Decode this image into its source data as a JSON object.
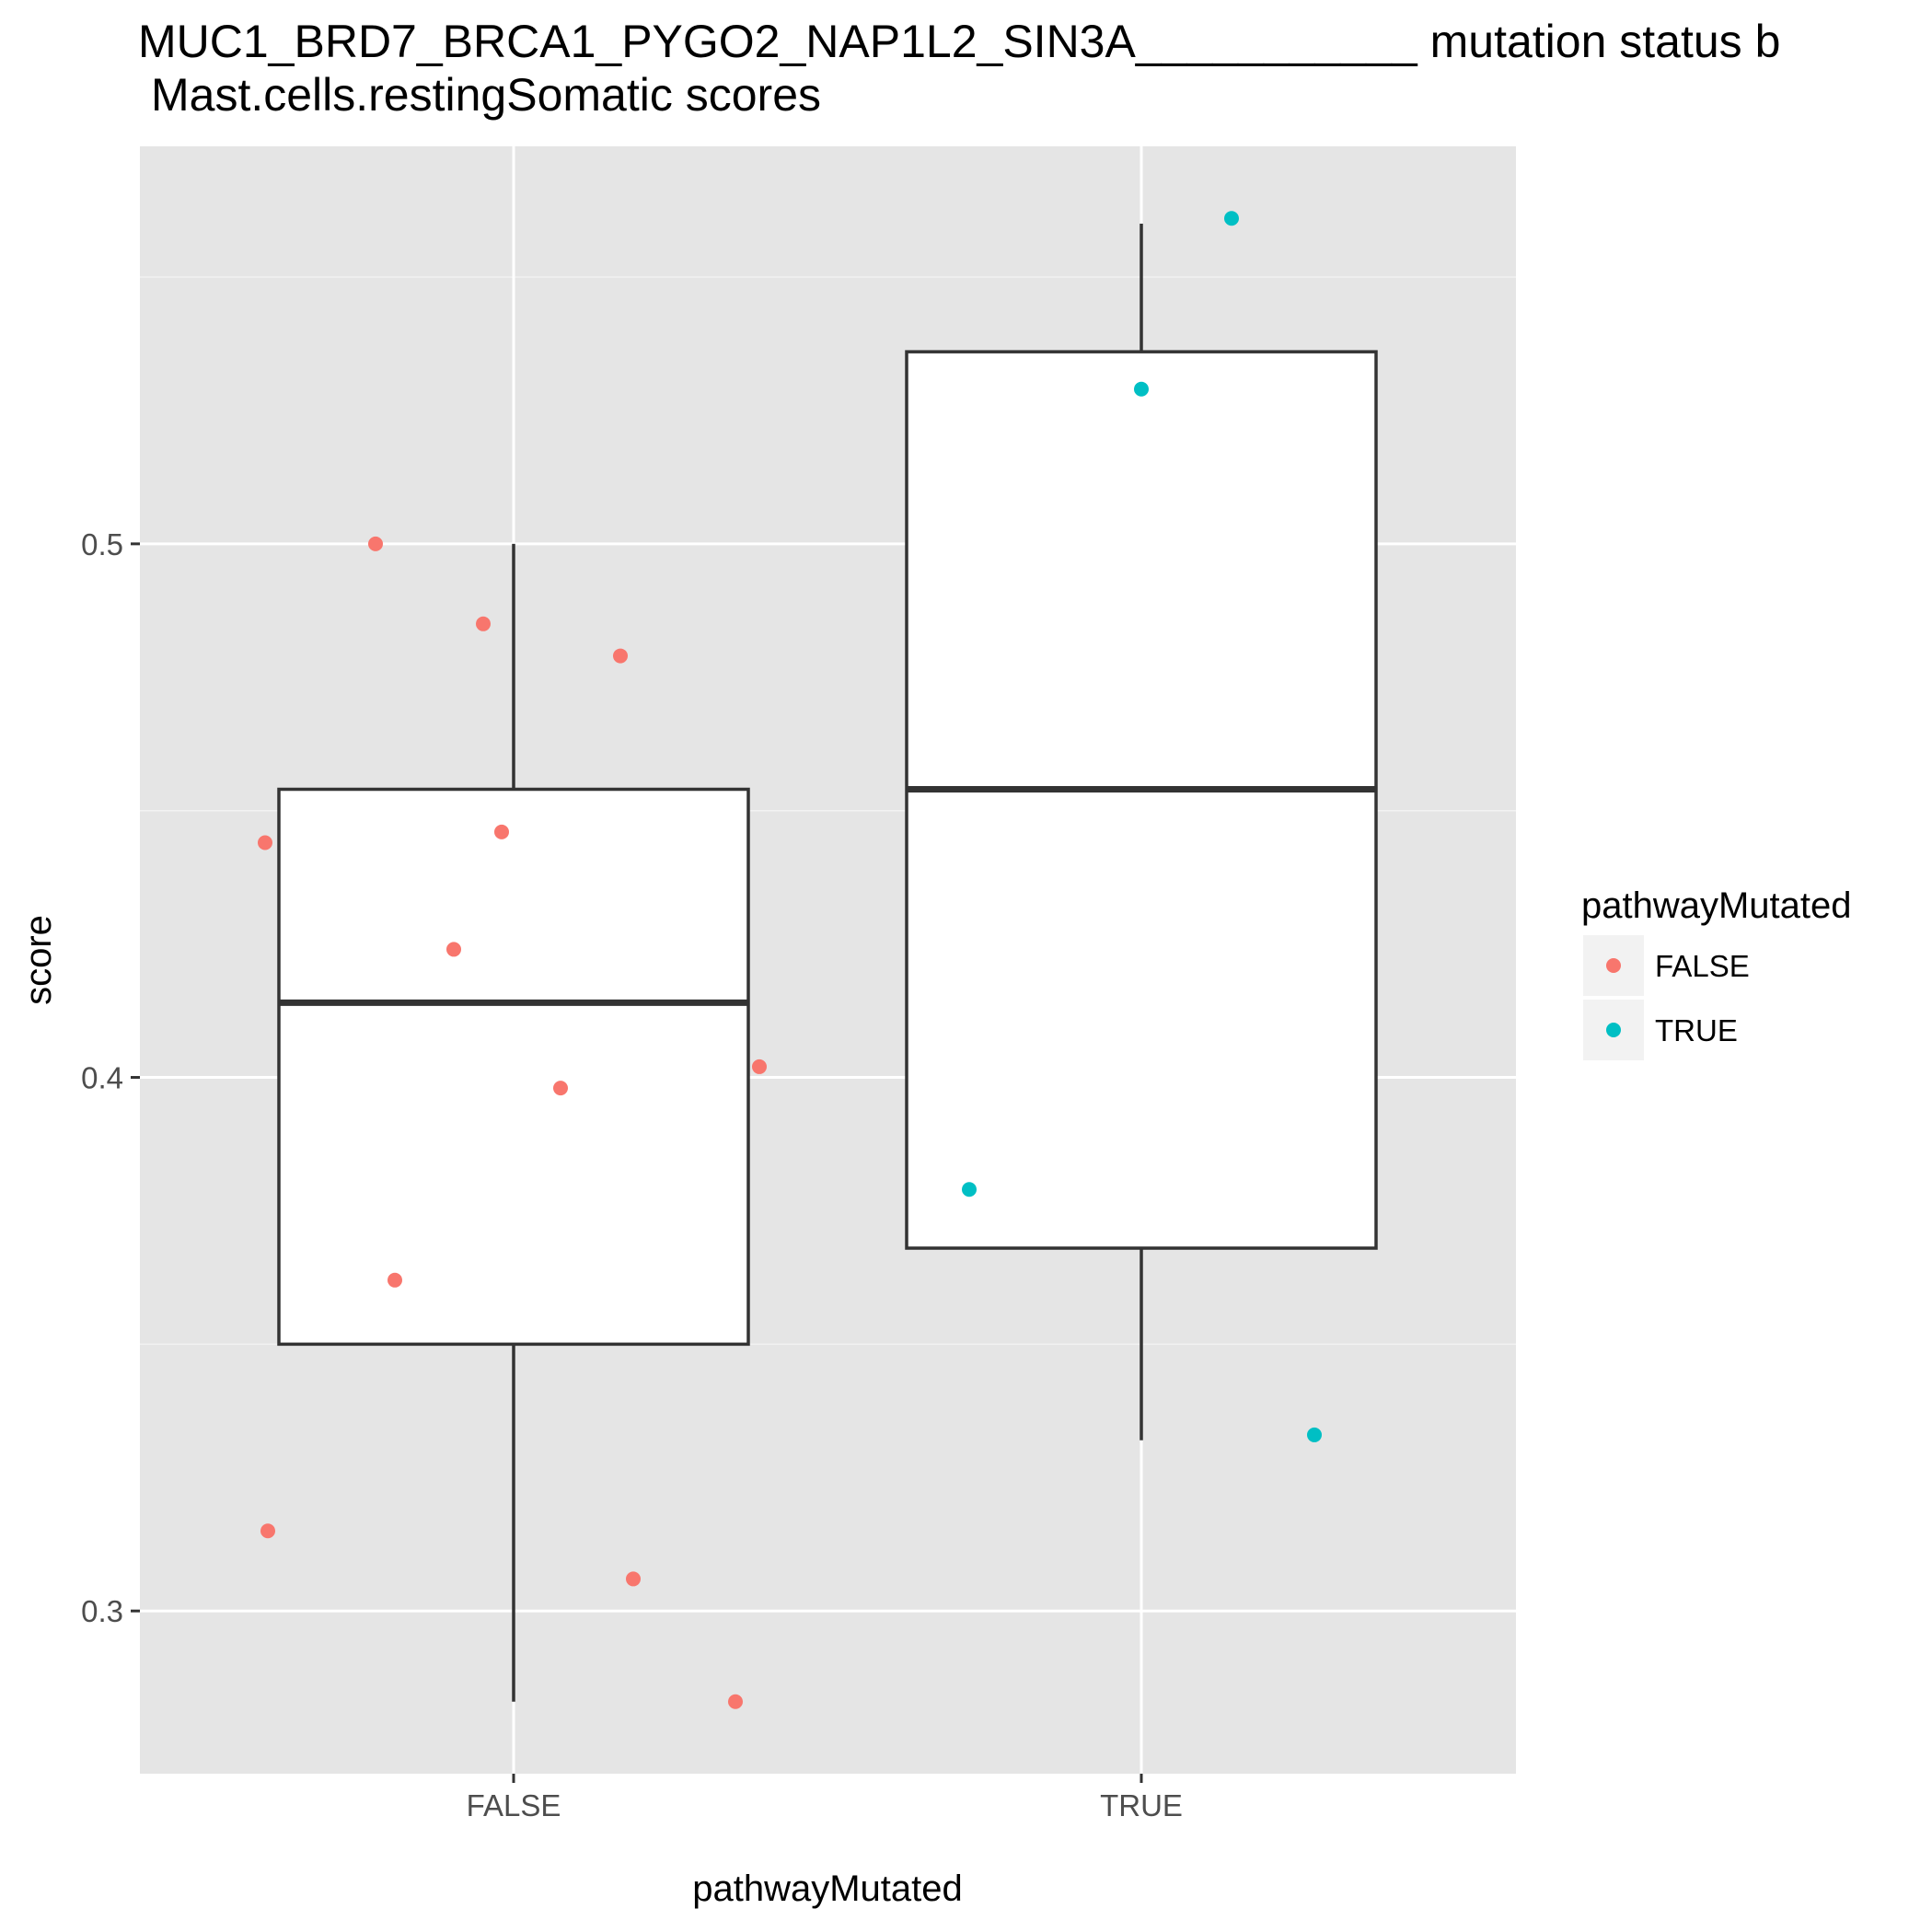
{
  "chart_data": {
    "type": "box",
    "title": "MUC1_BRD7_BRCA1_PYGO2_NAP1L2_SIN3A___________ mutation status b",
    "subtitle": "Mast.cells.restingSomatic scores",
    "xlabel": "pathwayMutated",
    "ylabel": "score",
    "ylim": [
      0.2695,
      0.5745
    ],
    "y_ticks": [
      0.3,
      0.4,
      0.5
    ],
    "y_tick_labels": [
      "0.3",
      "0.4",
      "0.5"
    ],
    "categories": [
      "FALSE",
      "TRUE"
    ],
    "grid": true,
    "panel_background": "#e5e5e5",
    "boxes": [
      {
        "category": "FALSE",
        "lower_whisker": 0.283,
        "q1": 0.35,
        "median": 0.414,
        "q3": 0.454,
        "upper_whisker": 0.5
      },
      {
        "category": "TRUE",
        "lower_whisker": 0.332,
        "q1": 0.368,
        "median": 0.454,
        "q3": 0.536,
        "upper_whisker": 0.56
      }
    ],
    "series": [
      {
        "name": "FALSE",
        "color": "#F8766D",
        "points": [
          {
            "x": "FALSE",
            "y": 0.5
          },
          {
            "x": "FALSE",
            "y": 0.485
          },
          {
            "x": "FALSE",
            "y": 0.479
          },
          {
            "x": "FALSE",
            "y": 0.446
          },
          {
            "x": "FALSE",
            "y": 0.444
          },
          {
            "x": "FALSE",
            "y": 0.424
          },
          {
            "x": "FALSE",
            "y": 0.402
          },
          {
            "x": "FALSE",
            "y": 0.398
          },
          {
            "x": "FALSE",
            "y": 0.362
          },
          {
            "x": "FALSE",
            "y": 0.315
          },
          {
            "x": "FALSE",
            "y": 0.306
          },
          {
            "x": "FALSE",
            "y": 0.283
          }
        ]
      },
      {
        "name": "TRUE",
        "color": "#00BFC4",
        "points": [
          {
            "x": "TRUE",
            "y": 0.561
          },
          {
            "x": "TRUE",
            "y": 0.529
          },
          {
            "x": "TRUE",
            "y": 0.379
          },
          {
            "x": "TRUE",
            "y": 0.333
          }
        ]
      }
    ],
    "legend": {
      "title": "pathwayMutated",
      "position": "right",
      "entries": [
        {
          "label": "FALSE",
          "color": "#F8766D"
        },
        {
          "label": "TRUE",
          "color": "#00BFC4"
        }
      ]
    }
  }
}
